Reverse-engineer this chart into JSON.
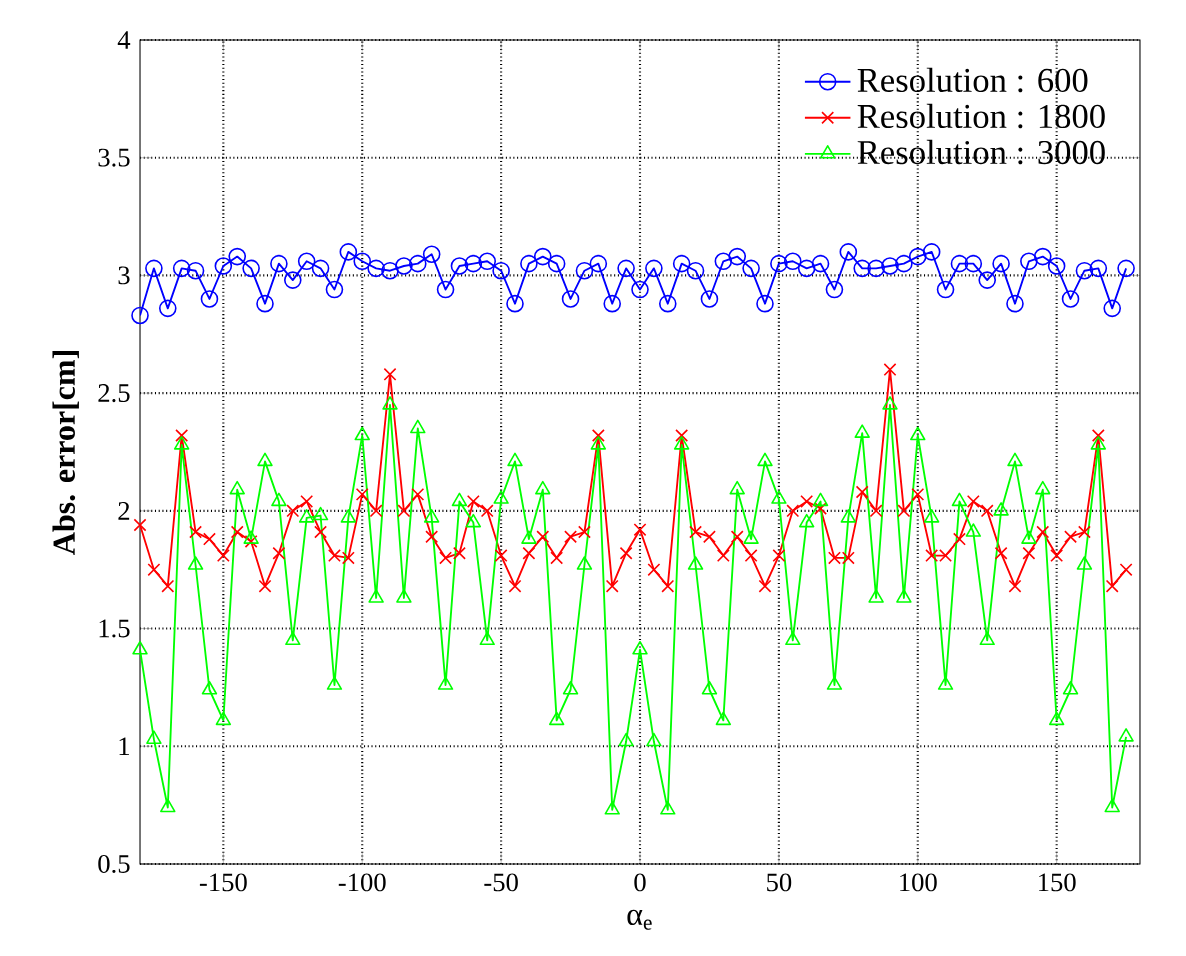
{
  "chart_data": {
    "type": "line",
    "xlabel": "α$_{e}$",
    "ylabel": "**Abs. error[cm]**",
    "x": [
      -180,
      -175,
      -170,
      -165,
      -160,
      -155,
      -150,
      -145,
      -140,
      -135,
      -130,
      -125,
      -120,
      -115,
      -110,
      -105,
      -100,
      -95,
      -90,
      -85,
      -80,
      -75,
      -70,
      -65,
      -60,
      -55,
      -50,
      -45,
      -40,
      -35,
      -30,
      -25,
      -20,
      -15,
      -10,
      -5,
      0,
      5,
      10,
      15,
      20,
      25,
      30,
      35,
      40,
      45,
      50,
      55,
      60,
      65,
      70,
      75,
      80,
      85,
      90,
      95,
      100,
      105,
      110,
      115,
      120,
      125,
      130,
      135,
      140,
      145,
      150,
      155,
      160,
      165,
      170,
      175
    ],
    "xlim": [
      -180,
      180
    ],
    "xticks": [
      -150,
      -100,
      -50,
      0,
      50,
      100,
      150
    ],
    "ylim": [
      0.5,
      4
    ],
    "yticks": [
      0.5,
      1,
      1.5,
      2,
      2.5,
      3,
      3.5,
      4
    ],
    "grid": true,
    "legend": "top right",
    "series": [
      {
        "name": "Resolution : 600",
        "color": "#0000ff",
        "marker": "circle",
        "values": [
          2.83,
          3.03,
          2.86,
          3.03,
          3.02,
          2.9,
          3.04,
          3.08,
          3.03,
          2.88,
          3.05,
          2.98,
          3.06,
          3.03,
          2.94,
          3.1,
          3.06,
          3.03,
          3.02,
          3.04,
          3.05,
          3.09,
          2.94,
          3.04,
          3.05,
          3.06,
          3.02,
          2.88,
          3.05,
          3.08,
          3.05,
          2.9,
          3.02,
          3.05,
          2.88,
          3.03,
          2.94,
          3.03,
          2.88,
          3.05,
          3.02,
          2.9,
          3.06,
          3.08,
          3.03,
          2.88,
          3.05,
          3.06,
          3.03,
          3.05,
          2.94,
          3.1,
          3.03,
          3.03,
          3.04,
          3.05,
          3.08,
          3.1,
          2.94,
          3.05,
          3.05,
          2.98,
          3.05,
          2.88,
          3.06,
          3.08,
          3.04,
          2.9,
          3.02,
          3.03,
          2.86,
          3.03
        ]
      },
      {
        "name": "Resolution : 1800",
        "color": "#ff0000",
        "marker": "cross",
        "values": [
          1.94,
          1.75,
          1.68,
          2.32,
          1.91,
          1.88,
          1.81,
          1.91,
          1.87,
          1.68,
          1.82,
          2.0,
          2.04,
          1.91,
          1.81,
          1.8,
          2.07,
          2.0,
          2.58,
          2.0,
          2.07,
          1.89,
          1.8,
          1.82,
          2.04,
          2.0,
          1.81,
          1.68,
          1.82,
          1.89,
          1.8,
          1.89,
          1.91,
          2.32,
          1.68,
          1.82,
          1.92,
          1.75,
          1.68,
          2.32,
          1.91,
          1.89,
          1.81,
          1.89,
          1.81,
          1.68,
          1.81,
          2.0,
          2.04,
          2.01,
          1.8,
          1.8,
          2.08,
          2.0,
          2.6,
          2.0,
          2.07,
          1.81,
          1.81,
          1.88,
          2.04,
          2.0,
          1.82,
          1.68,
          1.82,
          1.91,
          1.81,
          1.89,
          1.91,
          2.32,
          1.68,
          1.75
        ]
      },
      {
        "name": "Resolution : 3000",
        "color": "#00ff00",
        "marker": "triangle",
        "values": [
          1.41,
          1.03,
          0.74,
          2.28,
          1.77,
          1.24,
          1.11,
          2.09,
          1.88,
          2.21,
          2.04,
          1.45,
          1.97,
          1.98,
          1.26,
          1.97,
          2.32,
          1.63,
          2.45,
          1.63,
          2.35,
          1.97,
          1.26,
          2.04,
          1.95,
          1.45,
          2.05,
          2.21,
          1.88,
          2.09,
          1.11,
          1.24,
          1.77,
          2.28,
          0.73,
          1.02,
          1.41,
          1.02,
          0.73,
          2.28,
          1.77,
          1.24,
          1.11,
          2.09,
          1.88,
          2.21,
          2.05,
          1.45,
          1.95,
          2.04,
          1.26,
          1.97,
          2.33,
          1.63,
          2.45,
          1.63,
          2.32,
          1.97,
          1.26,
          2.04,
          1.91,
          1.45,
          2.0,
          2.21,
          1.88,
          2.09,
          1.11,
          1.24,
          1.77,
          2.28,
          0.74,
          1.04
        ]
      }
    ]
  }
}
